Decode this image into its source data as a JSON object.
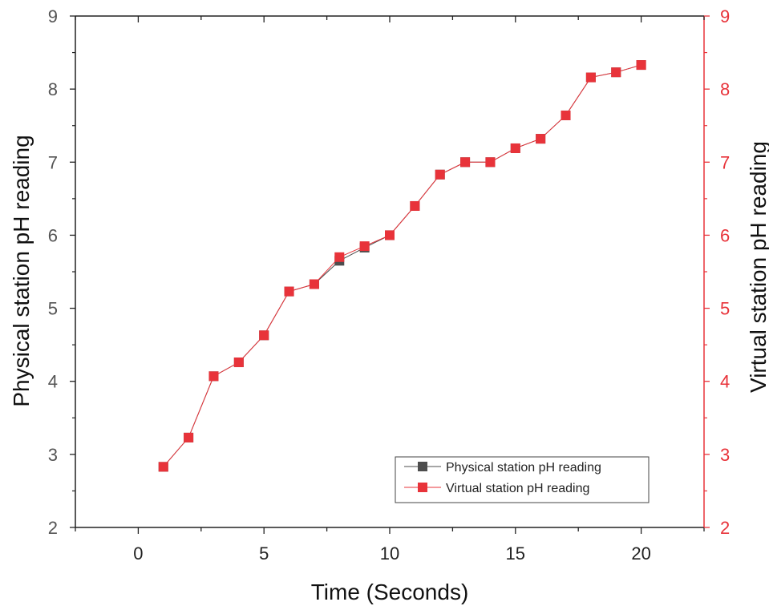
{
  "chart_data": {
    "type": "line",
    "xlabel": "Time (Seconds)",
    "ylabel_left": "Physical station pH reading",
    "ylabel_right": "Virtual station pH reading",
    "xlim": [
      -2.5,
      22.5
    ],
    "ylim": [
      2,
      9
    ],
    "ylim_right": [
      2,
      9
    ],
    "x_ticks": [
      0,
      5,
      10,
      15,
      20
    ],
    "y_ticks": [
      2,
      3,
      4,
      5,
      6,
      7,
      8,
      9
    ],
    "y_ticks_right": [
      2,
      3,
      4,
      5,
      6,
      7,
      8,
      9
    ],
    "legend_position": "bottom-right",
    "series": [
      {
        "name": "Physical station pH reading",
        "color": "#4d4d4d",
        "axis": "left",
        "x": [
          1,
          2,
          3,
          4,
          5,
          6,
          7,
          8,
          9,
          10,
          11,
          12,
          13,
          14,
          15,
          16,
          17,
          18,
          19,
          20
        ],
        "values": [
          2.83,
          3.23,
          4.07,
          4.26,
          4.63,
          5.23,
          5.33,
          5.65,
          5.83,
          6.0,
          6.4,
          6.83,
          7.0,
          7.0,
          7.19,
          7.32,
          7.64,
          8.16,
          8.23,
          8.33
        ]
      },
      {
        "name": "Virtual station pH reading",
        "color": "#e8333a",
        "axis": "right",
        "x": [
          1,
          2,
          3,
          4,
          5,
          6,
          7,
          8,
          9,
          10,
          11,
          12,
          13,
          14,
          15,
          16,
          17,
          18,
          19,
          20
        ],
        "values": [
          2.83,
          3.23,
          4.07,
          4.26,
          4.63,
          5.23,
          5.33,
          5.7,
          5.85,
          6.0,
          6.4,
          6.83,
          7.0,
          7.0,
          7.19,
          7.32,
          7.64,
          8.16,
          8.23,
          8.33
        ]
      }
    ]
  }
}
